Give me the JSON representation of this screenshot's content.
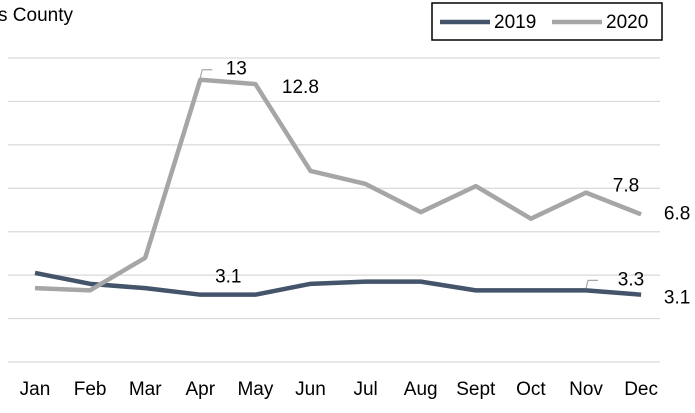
{
  "chart_data": {
    "type": "line",
    "title": "s County",
    "categories": [
      "Jan",
      "Feb",
      "Mar",
      "Apr",
      "May",
      "Jun",
      "Jul",
      "Aug",
      "Sept",
      "Oct",
      "Nov",
      "Dec"
    ],
    "series": [
      {
        "name": "2019",
        "color": "#44546a",
        "values": [
          4.1,
          3.6,
          3.4,
          3.1,
          3.1,
          3.6,
          3.7,
          3.7,
          3.3,
          3.3,
          3.3,
          3.1
        ],
        "value_labels": [
          null,
          null,
          null,
          "3.1",
          null,
          null,
          null,
          null,
          null,
          null,
          "3.3",
          "3.1"
        ]
      },
      {
        "name": "2020",
        "color": "#a6a6a6",
        "values": [
          3.4,
          3.3,
          4.8,
          13,
          12.8,
          8.8,
          8.2,
          6.9,
          8.1,
          6.6,
          7.8,
          6.8
        ],
        "value_labels": [
          null,
          null,
          null,
          "13",
          "12.8",
          null,
          null,
          null,
          null,
          null,
          "7.8",
          "6.8"
        ]
      }
    ],
    "ylim": [
      0,
      14
    ],
    "yticks": [
      0,
      2,
      4,
      6,
      8,
      10,
      12,
      14
    ],
    "grid": true,
    "legend": "top-right"
  }
}
